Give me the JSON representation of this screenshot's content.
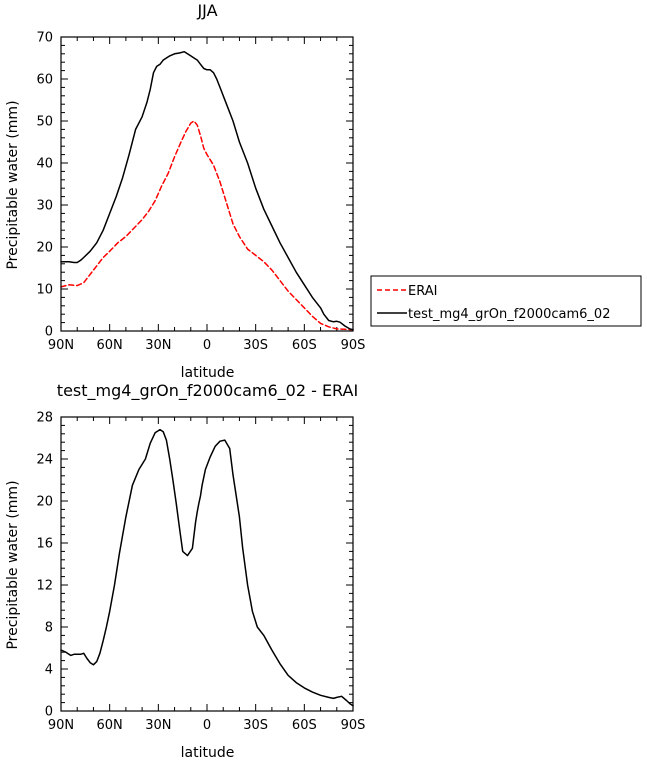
{
  "chart_data": [
    {
      "type": "line",
      "title": "JJA",
      "xlabel": "latitude",
      "ylabel": "Precipitable water (mm)",
      "xlim": [
        90,
        -90
      ],
      "ylim": [
        0,
        70
      ],
      "x_ticks": [
        90,
        60,
        30,
        0,
        -30,
        -60,
        -90
      ],
      "x_tick_labels": [
        "90N",
        "60N",
        "30N",
        "0",
        "30S",
        "60S",
        "90S"
      ],
      "y_ticks": [
        0,
        10,
        20,
        30,
        40,
        50,
        60,
        70
      ],
      "y_tick_labels": [
        "0",
        "10",
        "20",
        "30",
        "40",
        "50",
        "60",
        "70"
      ],
      "grid": false,
      "legend_position": "right",
      "series": [
        {
          "name": "ERAI",
          "color": "#ff0000",
          "dash": "dashed",
          "x": [
            90,
            85,
            80,
            76,
            72,
            68,
            64,
            60,
            55,
            50,
            45,
            40,
            36,
            32,
            28,
            24,
            20,
            16,
            13,
            10,
            8,
            6,
            4,
            2,
            0,
            -4,
            -8,
            -12,
            -16,
            -20,
            -25,
            -30,
            -35,
            -40,
            -45,
            -50,
            -55,
            -60,
            -65,
            -70,
            -75,
            -80,
            -85,
            -90
          ],
          "y": [
            10.5,
            11,
            10.8,
            11.5,
            13.5,
            15.5,
            17.5,
            19,
            21,
            22.5,
            24.5,
            26.5,
            28.5,
            31,
            34.5,
            37.5,
            41.5,
            45,
            47.5,
            49.5,
            50,
            49,
            46.5,
            43.5,
            42,
            39.5,
            35.5,
            30.5,
            25.5,
            22.5,
            19.5,
            18,
            16.5,
            14.5,
            12,
            9.5,
            7.5,
            5.5,
            3.5,
            1.8,
            1.0,
            0.5,
            0.4,
            0.3
          ]
        },
        {
          "name": "test_mg4_grOn_f2000cam6_02",
          "color": "#000000",
          "dash": "solid",
          "x": [
            90,
            85,
            82,
            80,
            78,
            76,
            72,
            68,
            64,
            60,
            56,
            52,
            48,
            44,
            40,
            37,
            35,
            33,
            31,
            29,
            27,
            25,
            23,
            20,
            17,
            14,
            12,
            10,
            8,
            6,
            4,
            2,
            0,
            -2,
            -4,
            -6,
            -8,
            -12,
            -16,
            -20,
            -25,
            -30,
            -35,
            -40,
            -45,
            -50,
            -55,
            -60,
            -65,
            -70,
            -72,
            -75,
            -78,
            -80,
            -82,
            -85,
            -88,
            -90
          ],
          "y": [
            16.5,
            16.5,
            16.3,
            16.3,
            16.8,
            17.5,
            19,
            21,
            24,
            28,
            32,
            36.5,
            42,
            48,
            51,
            54.5,
            57.5,
            61.5,
            63,
            63.5,
            64.5,
            65,
            65.5,
            66,
            66.2,
            66.5,
            66,
            65.5,
            65,
            64.5,
            63.5,
            62.5,
            62.2,
            62.2,
            61.5,
            60,
            58,
            54,
            50,
            45,
            40,
            34,
            29,
            25,
            21,
            17.5,
            14,
            11,
            8,
            5.5,
            4,
            2.5,
            2.2,
            2.3,
            2.1,
            1.2,
            0.5,
            0.3
          ]
        }
      ]
    },
    {
      "type": "line",
      "title": "test_mg4_grOn_f2000cam6_02 - ERAI",
      "xlabel": "latitude",
      "ylabel": "Precipitable water (mm)",
      "xlim": [
        90,
        -90
      ],
      "ylim": [
        0,
        28
      ],
      "x_ticks": [
        90,
        60,
        30,
        0,
        -30,
        -60,
        -90
      ],
      "x_tick_labels": [
        "90N",
        "60N",
        "30N",
        "0",
        "30S",
        "60S",
        "90S"
      ],
      "y_ticks": [
        0,
        4,
        8,
        12,
        16,
        20,
        24,
        28
      ],
      "y_tick_labels": [
        "0",
        "4",
        "8",
        "12",
        "16",
        "20",
        "24",
        "28"
      ],
      "grid": false,
      "series": [
        {
          "color": "#000000",
          "dash": "solid",
          "x": [
            90,
            87,
            84,
            82,
            80,
            78,
            76,
            74,
            72,
            70,
            68,
            66,
            64,
            62,
            60,
            57,
            54,
            50,
            46,
            42,
            38,
            35,
            32,
            29,
            27,
            25,
            23,
            21,
            19,
            17,
            15,
            12,
            9,
            7,
            6,
            5,
            4,
            3,
            1,
            -2,
            -5,
            -8,
            -11,
            -14,
            -16,
            -17,
            -18,
            -20,
            -22,
            -25,
            -28,
            -31,
            -35,
            -40,
            -45,
            -50,
            -55,
            -60,
            -65,
            -70,
            -75,
            -78,
            -80,
            -83,
            -86,
            -88,
            -90
          ],
          "y": [
            5.8,
            5.6,
            5.3,
            5.4,
            5.4,
            5.4,
            5.5,
            5.0,
            4.6,
            4.4,
            4.7,
            5.5,
            6.7,
            8.0,
            9.5,
            12,
            15,
            18.5,
            21.5,
            23.0,
            24.0,
            25.5,
            26.5,
            26.8,
            26.6,
            25.8,
            24.0,
            22.0,
            19.8,
            17.5,
            15.2,
            14.8,
            15.5,
            18.0,
            19.0,
            19.8,
            20.5,
            21.5,
            23.0,
            24.2,
            25.2,
            25.7,
            25.8,
            25.0,
            22.5,
            21.5,
            20.5,
            18.5,
            15.5,
            12.0,
            9.5,
            8.0,
            7.2,
            5.8,
            4.5,
            3.4,
            2.7,
            2.2,
            1.8,
            1.5,
            1.3,
            1.2,
            1.3,
            1.4,
            1.0,
            0.7,
            0.5
          ]
        }
      ]
    }
  ]
}
